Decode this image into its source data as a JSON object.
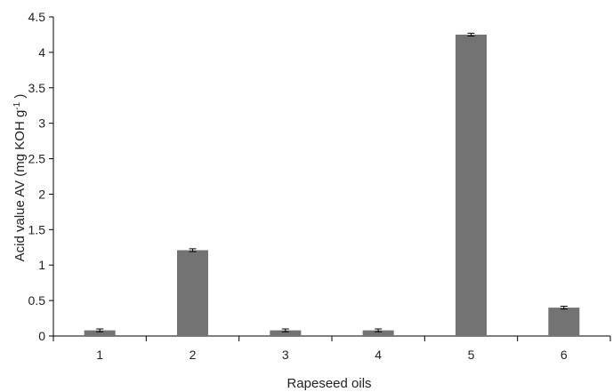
{
  "chart_data": {
    "type": "bar",
    "title": "",
    "xlabel": "Rapeseed oils",
    "ylabel": "Acid value AV (mg KOH g",
    "ylabel_sup": "-1",
    "ylabel_suffix": " )",
    "categories": [
      "1",
      "2",
      "3",
      "4",
      "5",
      "6"
    ],
    "values": [
      0.08,
      1.21,
      0.08,
      0.08,
      4.25,
      0.4
    ],
    "errors": [
      0.02,
      0.02,
      0.02,
      0.02,
      0.02,
      0.02
    ],
    "ylim": [
      0,
      4.5
    ],
    "yticks": [
      "0",
      "0.5",
      "1",
      "1.5",
      "2",
      "2.5",
      "3",
      "3.5",
      "4",
      "4.5"
    ],
    "grid": false,
    "legend": "none",
    "bar_color": "#737373",
    "axis_color": "#000000"
  }
}
